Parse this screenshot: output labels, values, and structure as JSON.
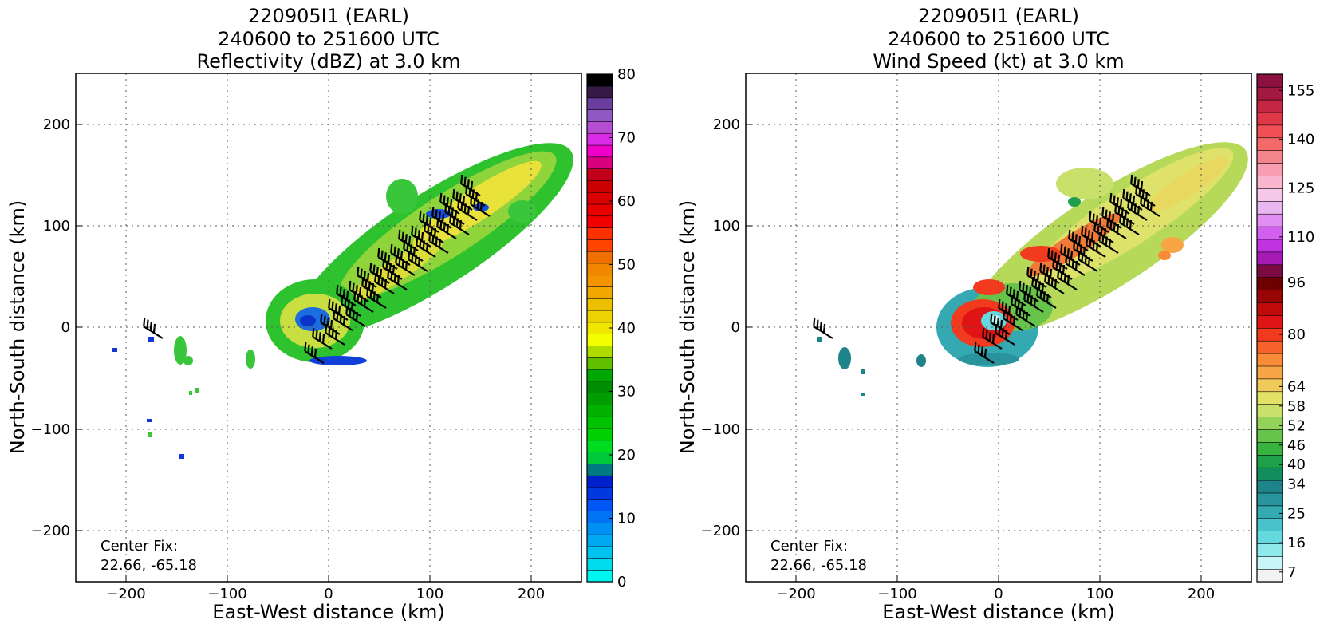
{
  "chart_data": [
    {
      "type": "heatmap",
      "title_lines": [
        "220905I1 (EARL)",
        "240600 to 251600 UTC",
        "Reflectivity (dBZ) at 3.0 km"
      ],
      "xlabel": "East-West distance (km)",
      "ylabel": "North-South distance (km)",
      "xlim": [
        -250,
        250
      ],
      "ylim": [
        -250,
        250
      ],
      "xticks": [
        -200,
        -100,
        0,
        100,
        200
      ],
      "yticks": [
        -200,
        -100,
        0,
        100,
        200
      ],
      "xtick_labels": [
        "−200",
        "−100",
        "0",
        "100",
        "200"
      ],
      "ytick_labels": [
        "−200",
        "−100",
        "0",
        "100",
        "200"
      ],
      "grid": true,
      "annotation": [
        "Center Fix:",
        "22.66, -65.18"
      ],
      "colorbar": {
        "min": 0,
        "max": 80,
        "tick_values": [
          0,
          10,
          20,
          30,
          40,
          50,
          60,
          70,
          80
        ],
        "tick_labels": [
          "0",
          "10",
          "20",
          "30",
          "40",
          "50",
          "60",
          "70",
          "80"
        ],
        "colors": [
          "#00f5f0",
          "#00dcee",
          "#00c3f0",
          "#00a9f2",
          "#0090f3",
          "#0073f5",
          "#0056f2",
          "#0038e0",
          "#0020cc",
          "#007a80",
          "#00c83c",
          "#00dc20",
          "#00d000",
          "#00c300",
          "#00b100",
          "#009c00",
          "#008c00",
          "#00a700",
          "#62bf00",
          "#b0db00",
          "#f4ff00",
          "#f1e600",
          "#ecd200",
          "#eebe00",
          "#f1a600",
          "#f39500",
          "#f18700",
          "#f06f00",
          "#ff4400",
          "#fa3000",
          "#f00000",
          "#e60000",
          "#d80000",
          "#ca0000",
          "#c2001a",
          "#d8007e",
          "#ee00c8",
          "#d92ae5",
          "#b64ed2",
          "#9058c3",
          "#6a3d9e",
          "#361a45",
          "#000000"
        ]
      },
      "legend": "none"
    },
    {
      "type": "heatmap",
      "title_lines": [
        "220905I1 (EARL)",
        "240600 to 251600 UTC",
        "Wind Speed (kt) at 3.0 km"
      ],
      "xlabel": "East-West distance (km)",
      "ylabel": "North-South distance (km)",
      "xlim": [
        -250,
        250
      ],
      "ylim": [
        -250,
        250
      ],
      "xticks": [
        -200,
        -100,
        0,
        100,
        200
      ],
      "yticks": [
        -200,
        -100,
        0,
        100,
        200
      ],
      "xtick_labels": [
        "−200",
        "−100",
        "0",
        "100",
        "200"
      ],
      "ytick_labels": [
        "−200",
        "−100",
        "0",
        "100",
        "200"
      ],
      "grid": true,
      "annotation": [
        "Center Fix:",
        "22.66, -65.18"
      ],
      "colorbar": {
        "min": 4,
        "max": 160,
        "tick_values": [
          7,
          16,
          25,
          34,
          40,
          46,
          52,
          58,
          64,
          80,
          96,
          110,
          125,
          140,
          155
        ],
        "tick_labels": [
          "7",
          "16",
          "25",
          "34",
          "40",
          "46",
          "52",
          "58",
          "64",
          "80",
          "96",
          "110",
          "125",
          "140",
          "155"
        ],
        "colors": [
          "#f2f2f2",
          "#c8f5f5",
          "#8ee9ea",
          "#64d9de",
          "#48c3cc",
          "#35a9b2",
          "#2a949c",
          "#1e8489",
          "#128e5e",
          "#1ea04a",
          "#37b33f",
          "#66c44a",
          "#94d25a",
          "#c9e06b",
          "#e3e267",
          "#f0c95b",
          "#f8a546",
          "#f98b38",
          "#f6632a",
          "#f23b1e",
          "#e01414",
          "#c00b0b",
          "#980505",
          "#6e0000",
          "#7c0a42",
          "#a61ab4",
          "#c033e0",
          "#d25ff0",
          "#e08ef2",
          "#eab6ef",
          "#f6c8e8",
          "#fbb6cf",
          "#f79db0",
          "#f5858d",
          "#f46a6a",
          "#ef4f55",
          "#e03748",
          "#c42644",
          "#a31841",
          "#8c1040"
        ]
      },
      "legend": "none"
    }
  ]
}
